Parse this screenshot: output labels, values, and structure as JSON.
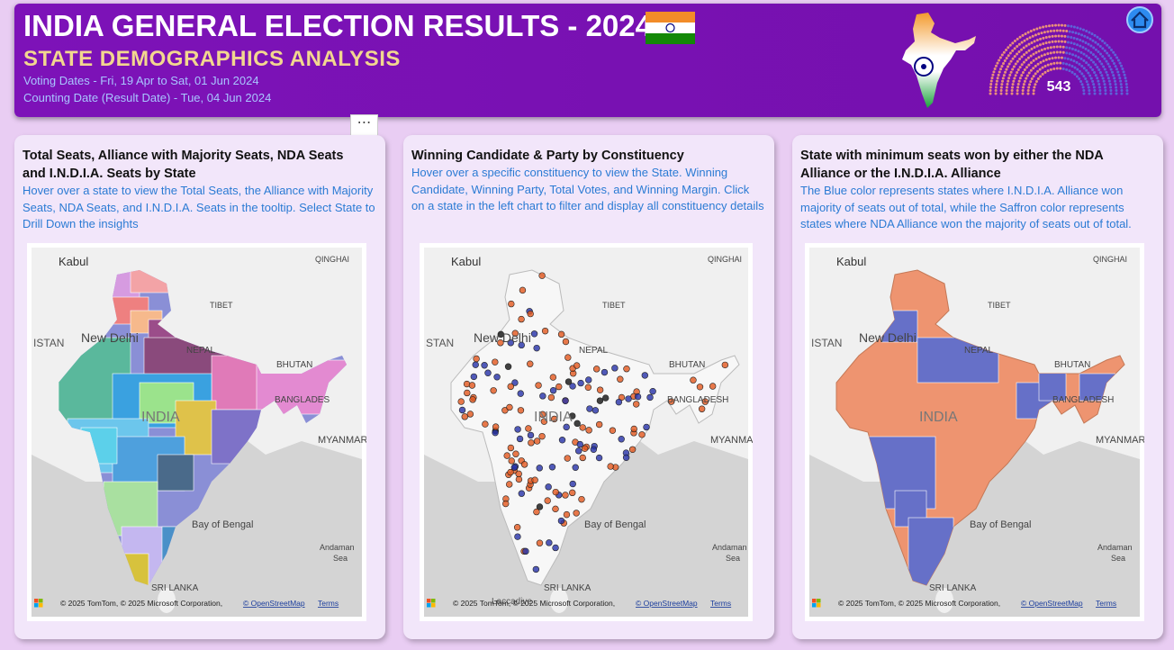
{
  "header": {
    "title": "INDIA GENERAL ELECTION RESULTS - 2024",
    "subtitle": "STATE DEMOGRAPHICS ANALYSIS",
    "voting_dates": "Voting Dates - Fri, 19 Apr to Sat, 01 Jun 2024",
    "counting_date": "Counting Date (Result Date) - Tue, 04 Jun 2024",
    "total_seats": "543"
  },
  "panels": [
    {
      "title": "Total Seats, Alliance with Majority Seats, NDA Seats and I.N.D.I.A. Seats by  State",
      "description": "Hover over a state to view the Total Seats, the Alliance with Majority Seats, NDA Seats, and I.N.D.I.A. Seats in the tooltip. Select State to Drill Down the insights",
      "map_labels": [
        "Kabul",
        "QINGHAI",
        "TIBET",
        "ISTAN",
        "New Delhi",
        "NEPAL",
        "BHUTAN",
        "BANGLADES",
        "INDIA",
        "MYANMAR",
        "Bay of Bengal",
        "Andaman",
        "Sea",
        "SRI LANKA"
      ],
      "attribution": [
        "© 2025 TomTom, © 2025 Microsoft Corporation,",
        "© OpenStreetMap",
        "Terms"
      ]
    },
    {
      "title": "Winning Candidate & Party by Constituency",
      "description": "Hover over a specific constituency to view the State. Winning Candidate, Winning Party, Total Votes, and Winning Margin. Click on a state in the left chart to filter and display all constituency details",
      "map_labels": [
        "Kabul",
        "QINGHAI",
        "TIBET",
        "STAN",
        "New Delhi",
        "NEPAL",
        "BHUTAN",
        "BANGLADESH",
        "INDIA",
        "MYANMAR",
        "Bay of Bengal",
        "Andaman",
        "Sea",
        "SRI LANKA",
        "Laccadive"
      ],
      "attribution": [
        "© 2025 TomTom, © 2025 Microsoft Corporation,",
        "© OpenStreetMap",
        "Terms"
      ]
    },
    {
      "title": "State with minimum seats won by either the NDA Alliance or  the I.N.D.I.A. Alliance",
      "description": "The Blue color represents states where I.N.D.I.A. Alliance won majority of seats out of total, while the Saffron color represents states where NDA Alliance won the majority of seats out of total.",
      "map_labels": [
        "Kabul",
        "QINGHAI",
        "TIBET",
        "ISTAN",
        "New Delhi",
        "NEPAL",
        "BHUTAN",
        "BANGLADESH",
        "INDIA",
        "MYANMAR",
        "Bay of Bengal",
        "Andaman",
        "Sea",
        "SRI LANKA"
      ],
      "attribution": [
        "© 2025 TomTom, © 2025 Microsoft Corporation,",
        "© OpenStreetMap",
        "Terms"
      ]
    }
  ]
}
